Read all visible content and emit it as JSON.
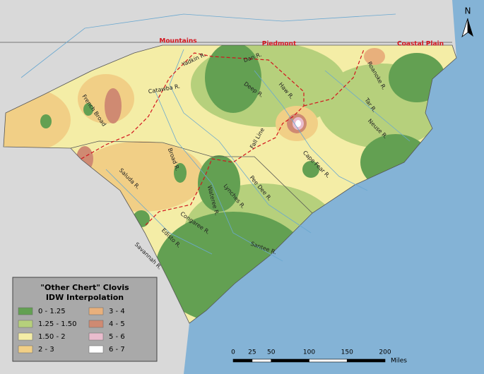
{
  "map": {
    "north": "N",
    "regions": [
      "Mountains",
      "Piedmont",
      "Coastal Plain"
    ],
    "rivers": [
      "Yadkin R.",
      "Dan R.",
      "Catawba R.",
      "French Broad",
      "Deep R.",
      "Haw R.",
      "Roanoke R.",
      "Tar R.",
      "Neuse R.",
      "Fall Line",
      "Cape Fear R.",
      "Pee Dee R.",
      "Lynches R.",
      "Wateree R.",
      "Broad R.",
      "Saluda R.",
      "Congaree R.",
      "Edisto R.",
      "Savannah R.",
      "Santee R."
    ],
    "legend": {
      "title": [
        "\"Other Chert\" Clovis",
        "IDW Interpolation"
      ],
      "items": [
        {
          "label": "0 - 1.25",
          "color": "#63a052"
        },
        {
          "label": "1.25 - 1.50",
          "color": "#b6d07c"
        },
        {
          "label": "1.50 - 2",
          "color": "#f4eda6"
        },
        {
          "label": "2 - 3",
          "color": "#f1cf86"
        },
        {
          "label": "3 - 4",
          "color": "#e8b07c"
        },
        {
          "label": "4 - 5",
          "color": "#cf8a72"
        },
        {
          "label": "5 - 6",
          "color": "#e9bccd"
        },
        {
          "label": "6 - 7",
          "color": "#ffffff"
        }
      ]
    },
    "scale": {
      "ticks": [
        0,
        25,
        50,
        100,
        150,
        200
      ],
      "unit": "Miles"
    }
  }
}
